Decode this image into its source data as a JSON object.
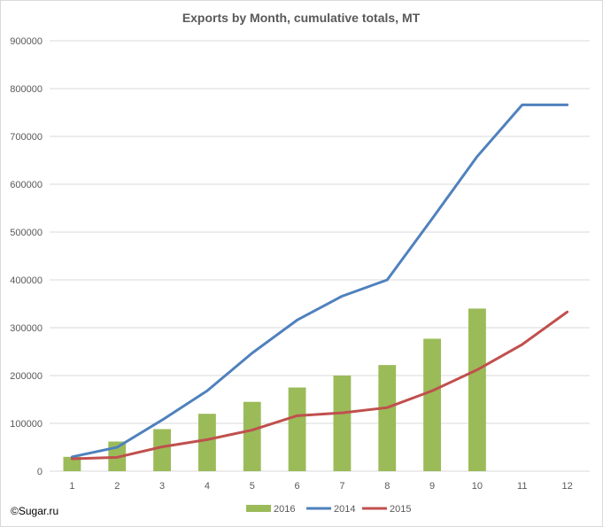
{
  "chart_data": {
    "type": "bar",
    "title": "Exports by Month, cumulative totals, MT",
    "xlabel": "",
    "ylabel": "",
    "categories": [
      "1",
      "2",
      "3",
      "4",
      "5",
      "6",
      "7",
      "8",
      "9",
      "10",
      "11",
      "12"
    ],
    "ylim": [
      0,
      900000
    ],
    "yticks": [
      0,
      100000,
      200000,
      300000,
      400000,
      500000,
      600000,
      700000,
      800000,
      900000
    ],
    "ytick_labels": [
      "0",
      "100000",
      "200000",
      "300000",
      "400000",
      "500000",
      "600000",
      "700000",
      "800000",
      "900000"
    ],
    "grid": true,
    "legend_position": "bottom",
    "series": [
      {
        "name": "2016",
        "kind": "bar",
        "color": "#9bbb59",
        "values": [
          30000,
          62000,
          88000,
          120000,
          145000,
          175000,
          200000,
          222000,
          277000,
          340000,
          null,
          null
        ]
      },
      {
        "name": "2014",
        "kind": "line",
        "color": "#4f81bd",
        "values": [
          30000,
          50000,
          107000,
          168000,
          247000,
          316000,
          366000,
          400000,
          528000,
          658000,
          766000,
          766000
        ]
      },
      {
        "name": "2015",
        "kind": "line",
        "color": "#c0504d",
        "values": [
          26000,
          29000,
          51000,
          66000,
          86000,
          116000,
          122000,
          133000,
          168000,
          212000,
          265000,
          333000
        ]
      }
    ]
  },
  "credit": "©Sugar.ru"
}
